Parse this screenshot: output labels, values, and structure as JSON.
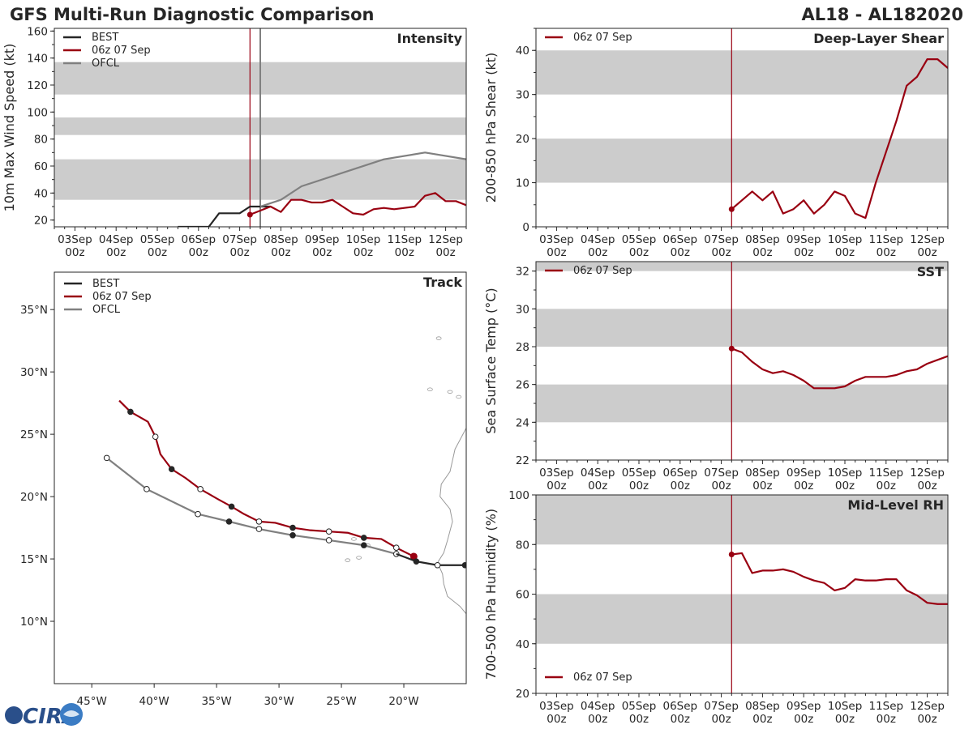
{
  "page": {
    "title": "GFS Multi-Run Diagnostic Comparison",
    "storm_id": "AL18 - AL182020",
    "logo_text": "CIRA"
  },
  "colors": {
    "best": "#262626",
    "gfs": "#990011",
    "ofcl": "#808080",
    "band": "#cccccc",
    "cursor": "#990011"
  },
  "time_axis": {
    "labels": [
      "03Sep\n00z",
      "04Sep\n00z",
      "05Sep\n00z",
      "06Sep\n00z",
      "07Sep\n00z",
      "08Sep\n00z",
      "09Sep\n00z",
      "10Sep\n00z",
      "11Sep\n00z",
      "12Sep\n00z"
    ],
    "values": [
      0,
      24,
      48,
      72,
      96,
      120,
      144,
      168,
      192,
      216
    ],
    "xlim": [
      -12,
      228
    ],
    "init_hour": 102
  },
  "chart_data": [
    {
      "id": "intensity",
      "type": "line",
      "title": "Intensity",
      "ylabel": "10m Max Wind Speed (kt)",
      "ylim": [
        15,
        162
      ],
      "yticks": [
        20,
        40,
        60,
        80,
        100,
        120,
        140,
        160
      ],
      "bands": [
        [
          35,
          65
        ],
        [
          83,
          96
        ],
        [
          113,
          137
        ]
      ],
      "ofcl_init_hour": 108,
      "legend": [
        "BEST",
        "06z 07 Sep",
        "OFCL"
      ],
      "series": [
        {
          "name": "BEST",
          "color_key": "best",
          "x": [
            84,
            90,
            96,
            102,
            108,
            114
          ],
          "y": [
            25,
            25,
            25,
            30,
            30,
            30
          ],
          "prefix_x": [
            72,
            78
          ],
          "prefix_y": [
            15,
            15
          ]
        },
        {
          "name": "06z 07 Sep",
          "color_key": "gfs",
          "x": [
            102,
            108,
            114,
            120,
            126,
            132,
            138,
            144,
            150,
            156,
            162,
            168,
            174,
            180,
            186,
            192,
            198,
            204,
            210,
            216,
            222,
            228
          ],
          "y": [
            24,
            27,
            30,
            26,
            35,
            35,
            33,
            33,
            35,
            30,
            25,
            24,
            28,
            29,
            28,
            29,
            30,
            38,
            40,
            34,
            34,
            31
          ]
        },
        {
          "name": "OFCL",
          "color_key": "ofcl",
          "x": [
            108,
            120,
            132,
            156,
            180,
            204,
            228
          ],
          "y": [
            30,
            35,
            45,
            55,
            65,
            70,
            65
          ]
        }
      ],
      "best_prefix": {
        "x": [
          60,
          66,
          72,
          78,
          84,
          90,
          96,
          102,
          108,
          114
        ],
        "y": [
          15,
          15,
          15,
          15,
          25,
          25,
          25,
          30,
          30,
          30
        ]
      }
    },
    {
      "id": "shear",
      "type": "line",
      "title": "Deep-Layer Shear",
      "ylabel": "200-850 hPa Shear (kt)",
      "ylim": [
        0,
        45
      ],
      "yticks": [
        0,
        10,
        20,
        30,
        40
      ],
      "bands": [
        [
          10,
          20
        ],
        [
          30,
          40
        ]
      ],
      "legend": [
        "06z 07 Sep"
      ],
      "series": [
        {
          "name": "06z 07 Sep",
          "color_key": "gfs",
          "x": [
            102,
            108,
            114,
            120,
            126,
            132,
            138,
            144,
            150,
            156,
            162,
            168,
            174,
            180,
            186,
            192,
            198,
            204,
            210,
            216,
            222,
            228
          ],
          "y": [
            4,
            6,
            8,
            6,
            8,
            3,
            4,
            6,
            3,
            5,
            8,
            7,
            3,
            2,
            10,
            17,
            24,
            32,
            34,
            38,
            38,
            36
          ]
        }
      ]
    },
    {
      "id": "sst",
      "type": "line",
      "title": "SST",
      "ylabel": "Sea Surface Temp (°C)",
      "ylim": [
        22,
        32.5
      ],
      "yticks": [
        22,
        24,
        26,
        28,
        30,
        32
      ],
      "bands": [
        [
          24,
          26
        ],
        [
          28,
          30
        ],
        [
          32,
          33
        ]
      ],
      "legend": [
        "06z 07 Sep"
      ],
      "series": [
        {
          "name": "06z 07 Sep",
          "color_key": "gfs",
          "x": [
            102,
            108,
            114,
            120,
            126,
            132,
            138,
            144,
            150,
            156,
            162,
            168,
            174,
            180,
            186,
            192,
            198,
            204,
            210,
            216,
            222,
            228
          ],
          "y": [
            27.9,
            27.7,
            27.2,
            26.8,
            26.6,
            26.7,
            26.5,
            26.2,
            25.8,
            25.8,
            25.8,
            25.9,
            26.2,
            26.4,
            26.4,
            26.4,
            26.5,
            26.7,
            26.8,
            27.1,
            27.3,
            27.5
          ]
        }
      ]
    },
    {
      "id": "rh",
      "type": "line",
      "title": "Mid-Level RH",
      "ylabel": "700-500 hPa Humidity (%)",
      "ylim": [
        20,
        100
      ],
      "yticks": [
        20,
        40,
        60,
        80,
        100
      ],
      "bands": [
        [
          40,
          60
        ],
        [
          80,
          100
        ]
      ],
      "legend": [
        "06z 07 Sep"
      ],
      "series": [
        {
          "name": "06z 07 Sep",
          "color_key": "gfs",
          "x": [
            102,
            108,
            114,
            120,
            126,
            132,
            138,
            144,
            150,
            156,
            162,
            168,
            174,
            180,
            186,
            192,
            198,
            204,
            210,
            216,
            222,
            228
          ],
          "y": [
            76,
            76.5,
            68.5,
            69.5,
            69.5,
            70,
            69,
            67,
            65.5,
            64.5,
            61.5,
            62.5,
            66,
            65.5,
            65.5,
            66,
            66,
            61.5,
            59.5,
            56.5,
            56,
            56
          ]
        }
      ]
    },
    {
      "id": "track",
      "type": "scatter",
      "title": "Track",
      "xlim": [
        -48,
        -15
      ],
      "ylim": [
        5,
        38
      ],
      "xticks": [
        -45,
        -40,
        -35,
        -30,
        -25,
        -20
      ],
      "xtick_labels": [
        "45°W",
        "40°W",
        "35°W",
        "30°W",
        "25°W",
        "20°W"
      ],
      "yticks": [
        10,
        15,
        20,
        25,
        30,
        35
      ],
      "ytick_labels": [
        "10°N",
        "15°N",
        "20°N",
        "25°N",
        "30°N",
        "35°N"
      ],
      "legend": [
        "BEST",
        "06z 07 Sep",
        "OFCL"
      ],
      "series": [
        {
          "name": "BEST",
          "color_key": "best",
          "lon": [
            -15.1,
            -17.3,
            -19.0,
            -20.6
          ],
          "lat": [
            14.5,
            14.5,
            14.8,
            15.4
          ],
          "markers": [
            {
              "lon": -15.1,
              "lat": 14.5,
              "filled": true
            },
            {
              "lon": -17.3,
              "lat": 14.5,
              "filled": false
            },
            {
              "lon": -19.0,
              "lat": 14.8,
              "filled": true
            }
          ]
        },
        {
          "name": "06z 07 Sep",
          "color_key": "gfs",
          "lon": [
            -19.2,
            -20.6,
            -21.8,
            -23.2,
            -24.5,
            -26.0,
            -27.5,
            -28.9,
            -30.3,
            -31.6,
            -32.8,
            -33.8,
            -34.9,
            -36.3,
            -37.5,
            -38.6,
            -39.5,
            -39.9,
            -40.5,
            -41.9,
            -42.8
          ],
          "lat": [
            15.2,
            15.9,
            16.6,
            16.7,
            17.1,
            17.2,
            17.3,
            17.5,
            17.9,
            18.0,
            18.6,
            19.2,
            19.8,
            20.6,
            21.5,
            22.2,
            23.4,
            24.8,
            26.0,
            26.8,
            27.7
          ],
          "markers": [
            {
              "lon": -19.2,
              "lat": 15.2,
              "filled": true
            },
            {
              "lon": -20.6,
              "lat": 15.9,
              "filled": false
            },
            {
              "lon": -23.2,
              "lat": 16.7,
              "filled": true
            },
            {
              "lon": -26.0,
              "lat": 17.2,
              "filled": false
            },
            {
              "lon": -28.9,
              "lat": 17.5,
              "filled": true
            },
            {
              "lon": -31.6,
              "lat": 18.0,
              "filled": false
            },
            {
              "lon": -33.8,
              "lat": 19.2,
              "filled": true
            },
            {
              "lon": -36.3,
              "lat": 20.6,
              "filled": false
            },
            {
              "lon": -38.6,
              "lat": 22.2,
              "filled": true
            },
            {
              "lon": -39.9,
              "lat": 24.8,
              "filled": false
            },
            {
              "lon": -41.9,
              "lat": 26.8,
              "filled": true
            }
          ]
        },
        {
          "name": "OFCL",
          "color_key": "ofcl",
          "lon": [
            -20.6,
            -23.2,
            -26.0,
            -28.9,
            -31.6,
            -34.0,
            -36.5,
            -40.6,
            -43.8
          ],
          "lat": [
            15.4,
            16.1,
            16.5,
            16.9,
            17.4,
            18.0,
            18.6,
            20.6,
            23.1
          ],
          "markers": [
            {
              "lon": -20.6,
              "lat": 15.4,
              "filled": false
            },
            {
              "lon": -23.2,
              "lat": 16.1,
              "filled": true
            },
            {
              "lon": -26.0,
              "lat": 16.5,
              "filled": false
            },
            {
              "lon": -28.9,
              "lat": 16.9,
              "filled": true
            },
            {
              "lon": -31.6,
              "lat": 17.4,
              "filled": false
            },
            {
              "lon": -34.0,
              "lat": 18.0,
              "filled": true
            },
            {
              "lon": -36.5,
              "lat": 18.6,
              "filled": false
            },
            {
              "lon": -40.6,
              "lat": 20.6,
              "filled": false
            },
            {
              "lon": -43.8,
              "lat": 23.1,
              "filled": false
            }
          ]
        }
      ]
    }
  ]
}
